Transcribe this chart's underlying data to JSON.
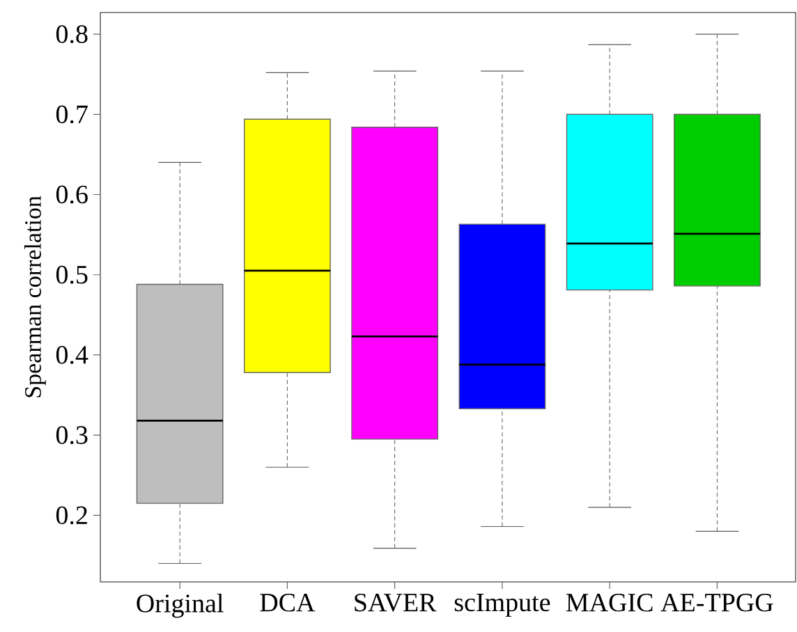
{
  "chart_data": {
    "type": "box",
    "ylabel": "Spearman correlation",
    "categories": [
      "Original",
      "DCA",
      "SAVER",
      "scImpute",
      "MAGIC",
      "AE-TPGG"
    ],
    "colors": [
      "#bebebe",
      "#ffff00",
      "#ff00ff",
      "#0000ff",
      "#00ffff",
      "#00cd00"
    ],
    "boxes": [
      {
        "low": 0.14,
        "q1": 0.215,
        "median": 0.318,
        "q3": 0.488,
        "high": 0.64
      },
      {
        "low": 0.26,
        "q1": 0.378,
        "median": 0.505,
        "q3": 0.694,
        "high": 0.752
      },
      {
        "low": 0.159,
        "q1": 0.295,
        "median": 0.423,
        "q3": 0.684,
        "high": 0.754
      },
      {
        "low": 0.186,
        "q1": 0.333,
        "median": 0.388,
        "q3": 0.563,
        "high": 0.754
      },
      {
        "low": 0.21,
        "q1": 0.481,
        "median": 0.539,
        "q3": 0.7,
        "high": 0.787
      },
      {
        "low": 0.18,
        "q1": 0.486,
        "median": 0.551,
        "q3": 0.7,
        "high": 0.8
      }
    ],
    "ylim": [
      0.117,
      0.827
    ],
    "yticks": [
      0.2,
      0.3,
      0.4,
      0.5,
      0.6,
      0.7,
      0.8
    ]
  }
}
